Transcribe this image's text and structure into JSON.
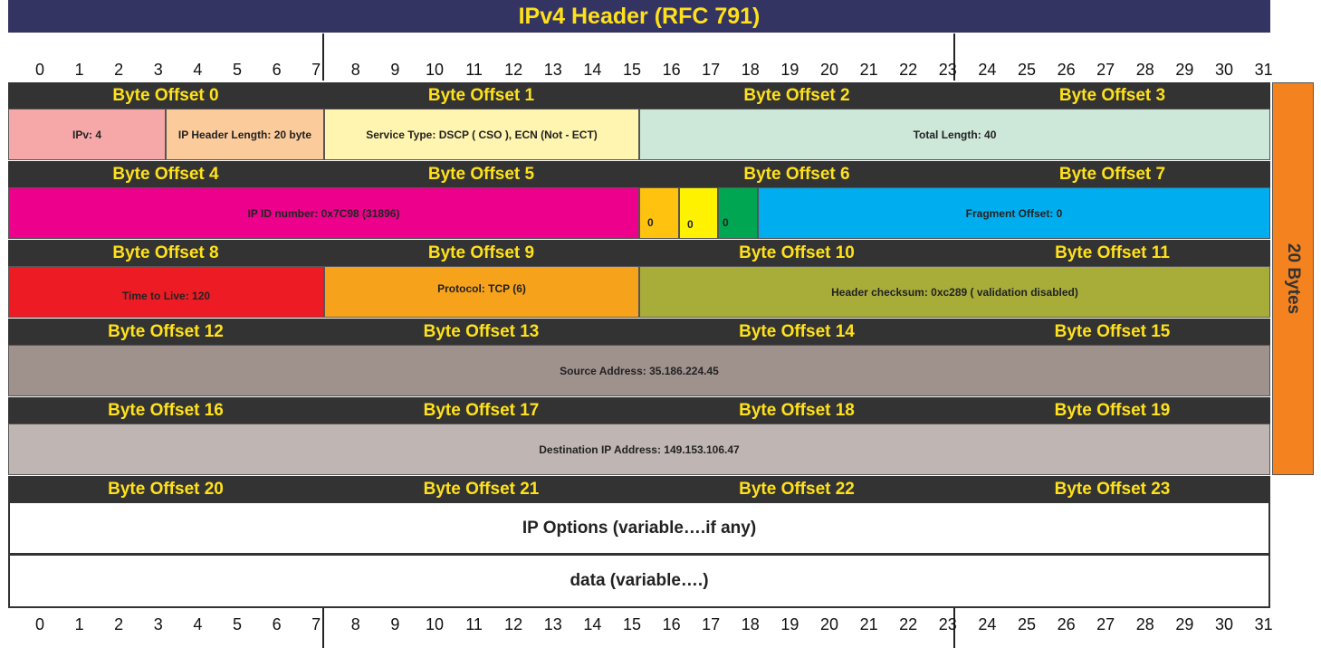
{
  "title": "IPv4 Header (RFC 791)",
  "bits": [
    "0",
    "1",
    "2",
    "3",
    "4",
    "5",
    "6",
    "7",
    "8",
    "9",
    "10",
    "11",
    "12",
    "13",
    "14",
    "15",
    "16",
    "17",
    "18",
    "19",
    "20",
    "21",
    "22",
    "23",
    "24",
    "25",
    "26",
    "27",
    "28",
    "29",
    "30",
    "31"
  ],
  "offset_rows": [
    [
      "Byte Offset 0",
      "Byte Offset 1",
      "Byte Offset 2",
      "Byte Offset 3"
    ],
    [
      "Byte Offset 4",
      "Byte Offset 5",
      "Byte Offset 6",
      "Byte Offset 7"
    ],
    [
      "Byte Offset 8",
      "Byte Offset 9",
      "Byte Offset 10",
      "Byte Offset 11"
    ],
    [
      "Byte Offset 12",
      "Byte Offset 13",
      "Byte Offset 14",
      "Byte Offset 15"
    ],
    [
      "Byte Offset 16",
      "Byte Offset 17",
      "Byte Offset 18",
      "Byte Offset 19"
    ],
    [
      "Byte Offset 20",
      "Byte Offset 21",
      "Byte Offset 22",
      "Byte Offset 23"
    ]
  ],
  "fields": {
    "version": "IPv: 4",
    "ihl": "IP Header Length: 20 byte",
    "service_type": "Service Type: DSCP ( CSO ), ECN (Not - ECT)",
    "total_length": "Total Length: 40",
    "ip_id": "IP ID number: 0x7C98 (31896)",
    "flag_reserved": "0",
    "flag_df": "0",
    "flag_mf": "0",
    "fragment_offset": "Fragment Offset: 0",
    "ttl": "Time to Live: 120",
    "protocol": "Protocol: TCP (6)",
    "checksum": "Header checksum: 0xc289 ( validation disabled)",
    "source": "Source Address: 35.186.224.45",
    "destination": "Destination IP Address: 149.153.106.47"
  },
  "options": "IP Options (variable….if any)",
  "data_row": "data (variable….)",
  "side_label": "20 Bytes",
  "colors": {
    "title_bg": "#343462",
    "title_text": "#ffe11b",
    "offset_bg": "#333333",
    "version": "#f6a8a9",
    "ihl": "#fccb9b",
    "service_type": "#fff5b0",
    "total_length": "#cde7d8",
    "ip_id": "#ec008c",
    "flag_reserved": "#ffc20e",
    "flag_df": "#fff200",
    "flag_mf": "#00a651",
    "fragment_offset": "#00aeef",
    "ttl": "#ed1c24",
    "protocol": "#f7a21b",
    "checksum": "#a8ad3a",
    "source": "#9f918c",
    "destination": "#bfb6b3",
    "side": "#f4821f"
  }
}
